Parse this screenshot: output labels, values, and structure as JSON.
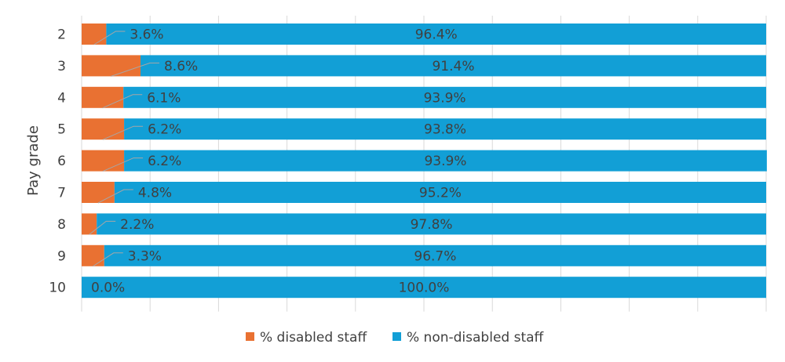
{
  "chart_data": {
    "type": "bar",
    "orientation": "horizontal",
    "stacked": "100%",
    "title": "",
    "xlabel": "",
    "ylabel": "Pay grade",
    "xlim": [
      0,
      100
    ],
    "grid": true,
    "legend_position": "bottom",
    "categories": [
      "2",
      "3",
      "4",
      "5",
      "6",
      "7",
      "8",
      "9",
      "10"
    ],
    "series": [
      {
        "name": "% disabled staff",
        "color": "#E97132",
        "values": [
          3.6,
          8.6,
          6.1,
          6.2,
          6.2,
          4.8,
          2.2,
          3.3,
          0.0
        ],
        "labels": [
          "3.6%",
          "8.6%",
          "6.1%",
          "6.2%",
          "6.2%",
          "4.8%",
          "2.2%",
          "3.3%",
          "0.0%"
        ]
      },
      {
        "name": "% non-disabled staff",
        "color": "#129FD6",
        "values": [
          96.4,
          91.4,
          93.9,
          93.8,
          93.9,
          95.2,
          97.8,
          96.7,
          100.0
        ],
        "labels": [
          "96.4%",
          "91.4%",
          "93.9%",
          "93.8%",
          "93.9%",
          "95.2%",
          "97.8%",
          "96.7%",
          "100.0%"
        ]
      }
    ]
  }
}
